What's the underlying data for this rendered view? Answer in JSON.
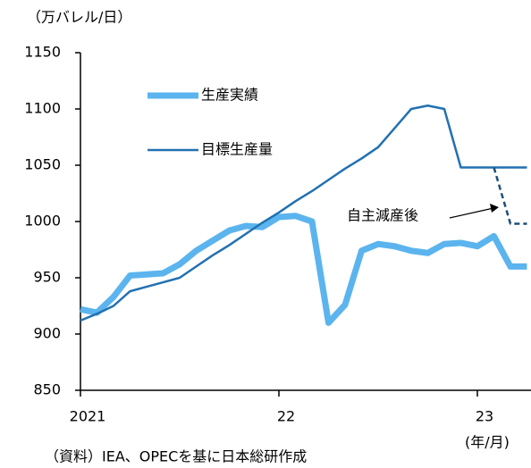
{
  "chart_data": {
    "type": "line",
    "y_unit": "（万バレル/日）",
    "x_unit": "(年/月)",
    "source": "（資料）IEA、OPECを基に日本総研作成",
    "annotation": "自主減産後",
    "categories": [
      "2021",
      null,
      null,
      null,
      null,
      null,
      null,
      null,
      null,
      null,
      null,
      null,
      "22",
      null,
      null,
      null,
      null,
      null,
      null,
      null,
      null,
      null,
      null,
      null,
      "23",
      null,
      null,
      null
    ],
    "series": [
      {
        "name": "生産実績",
        "color": "#5bb4ee",
        "width": 7,
        "values": [
          922,
          919,
          933,
          952,
          953,
          954,
          962,
          974,
          983,
          992,
          996,
          995,
          1004,
          1005,
          1000,
          910,
          926,
          974,
          980,
          978,
          974,
          972,
          980,
          981,
          978,
          987,
          960,
          960
        ]
      },
      {
        "name": "目標生産量",
        "color": "#2271b1",
        "width": 2.5,
        "values": [
          912,
          918,
          925,
          938,
          942,
          946,
          950,
          960,
          970,
          979,
          989,
          999,
          1008,
          1018,
          1027,
          1037,
          1047,
          1056,
          1066,
          1083,
          1100,
          1103,
          1100,
          1048,
          1048,
          1048,
          1048,
          1048
        ]
      },
      {
        "color": "#1f4e79",
        "width": 2.5,
        "dashed": true,
        "values": [
          null,
          null,
          null,
          null,
          null,
          null,
          null,
          null,
          null,
          null,
          null,
          null,
          null,
          null,
          null,
          null,
          null,
          null,
          null,
          null,
          null,
          null,
          null,
          null,
          null,
          1048,
          998,
          998
        ]
      }
    ],
    "ylim": [
      850,
      1150
    ],
    "yticks": [
      850,
      900,
      950,
      1000,
      1050,
      1100,
      1150
    ]
  }
}
